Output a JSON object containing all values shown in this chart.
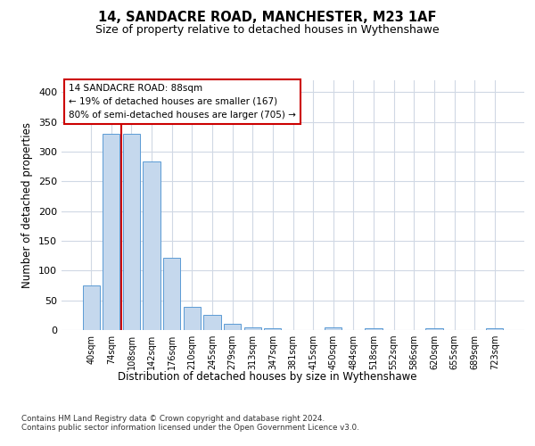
{
  "title1": "14, SANDACRE ROAD, MANCHESTER, M23 1AF",
  "title2": "Size of property relative to detached houses in Wythenshawe",
  "xlabel": "Distribution of detached houses by size in Wythenshawe",
  "ylabel": "Number of detached properties",
  "footnote": "Contains HM Land Registry data © Crown copyright and database right 2024.\nContains public sector information licensed under the Open Government Licence v3.0.",
  "bar_labels": [
    "40sqm",
    "74sqm",
    "108sqm",
    "142sqm",
    "176sqm",
    "210sqm",
    "245sqm",
    "279sqm",
    "313sqm",
    "347sqm",
    "381sqm",
    "415sqm",
    "450sqm",
    "484sqm",
    "518sqm",
    "552sqm",
    "586sqm",
    "620sqm",
    "655sqm",
    "689sqm",
    "723sqm"
  ],
  "bar_values": [
    75,
    330,
    330,
    283,
    122,
    39,
    25,
    10,
    5,
    3,
    0,
    0,
    5,
    0,
    3,
    0,
    0,
    3,
    0,
    0,
    3
  ],
  "bar_color": "#c5d8ed",
  "bar_edge_color": "#5b9bd5",
  "grid_color": "#d0d8e4",
  "red_line_x": 1.5,
  "red_line_color": "#cc0000",
  "annotation_text": "14 SANDACRE ROAD: 88sqm\n← 19% of detached houses are smaller (167)\n80% of semi-detached houses are larger (705) →",
  "annotation_box_color": "#ffffff",
  "annotation_box_edge": "#cc0000",
  "ylim": [
    0,
    420
  ],
  "yticks": [
    0,
    50,
    100,
    150,
    200,
    250,
    300,
    350,
    400
  ],
  "bg_color": "#ffffff",
  "figsize": [
    6.0,
    5.0
  ],
  "dpi": 100
}
